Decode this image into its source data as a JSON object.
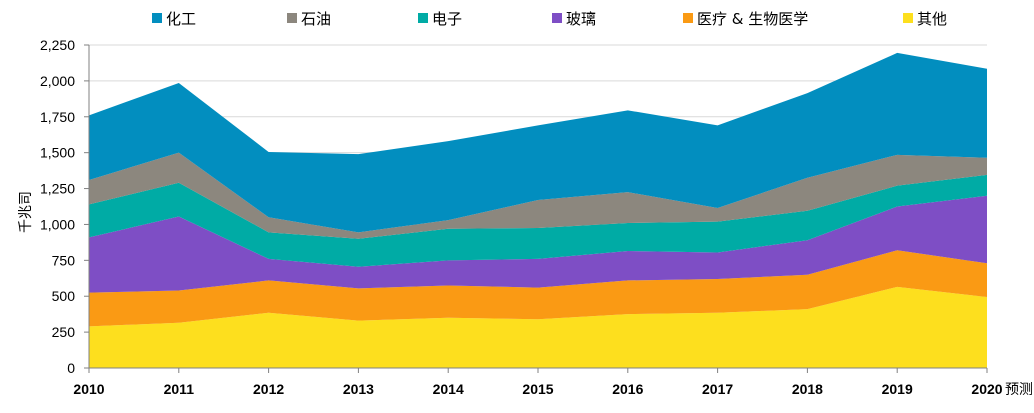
{
  "chart_data": {
    "type": "area",
    "stacked": true,
    "x": [
      "2010",
      "2011",
      "2012",
      "2013",
      "2014",
      "2015",
      "2016",
      "2017",
      "2018",
      "2019",
      "2020"
    ],
    "x_suffix_last": "预测",
    "ylabel": "千兆司",
    "ylim": [
      0,
      2250
    ],
    "yticks": [
      0,
      250,
      500,
      750,
      1000,
      1250,
      1500,
      1750,
      2000,
      2250
    ],
    "ytick_labels": [
      "0",
      "250",
      "500",
      "750",
      "1,000",
      "1,250",
      "1,500",
      "1,750",
      "2,000",
      "2,250"
    ],
    "grid": true,
    "legend_position": "top",
    "series": [
      {
        "name": "其他",
        "color": "#FDDF1E",
        "values": [
          290,
          315,
          385,
          330,
          350,
          340,
          375,
          385,
          410,
          565,
          495
        ]
      },
      {
        "name": "医疗 & 生物医学",
        "color": "#FA9A14",
        "values": [
          235,
          225,
          225,
          225,
          225,
          220,
          235,
          235,
          240,
          255,
          235
        ]
      },
      {
        "name": "玻璃",
        "color": "#7E4EC5",
        "values": [
          385,
          515,
          150,
          150,
          175,
          200,
          205,
          185,
          240,
          305,
          470
        ]
      },
      {
        "name": "电子",
        "color": "#00ABA5",
        "values": [
          230,
          235,
          185,
          195,
          220,
          215,
          195,
          215,
          205,
          145,
          145
        ]
      },
      {
        "name": "石油",
        "color": "#8C877E",
        "values": [
          170,
          210,
          105,
          45,
          60,
          195,
          215,
          95,
          230,
          215,
          120
        ]
      },
      {
        "name": "化工",
        "color": "#028EBF",
        "values": [
          450,
          485,
          455,
          545,
          550,
          520,
          570,
          575,
          590,
          710,
          620
        ]
      }
    ]
  }
}
